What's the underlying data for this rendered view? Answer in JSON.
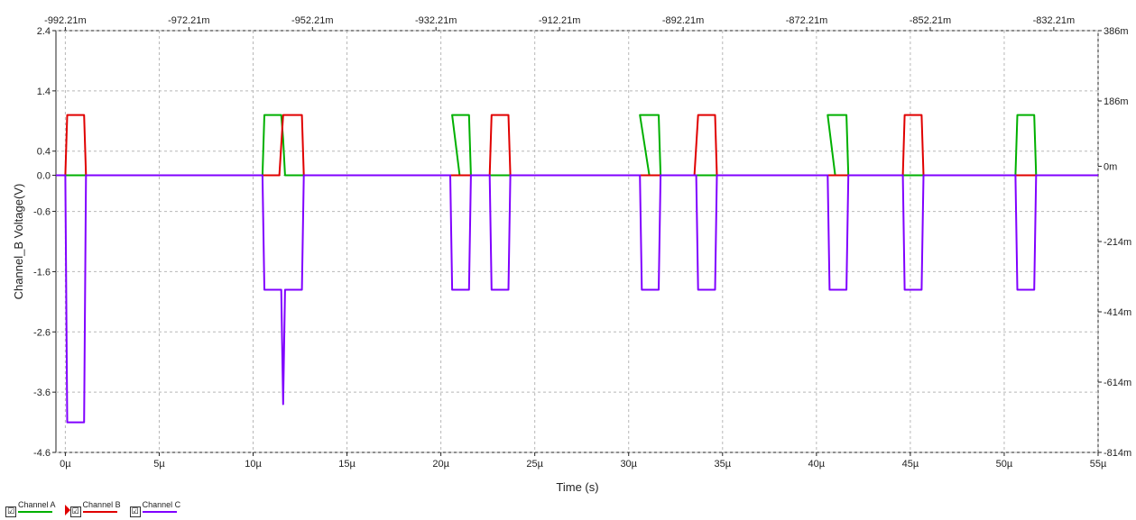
{
  "chart_data": {
    "type": "line",
    "xlabel": "Time (s)",
    "ylabel": "Channel_B Voltage(V)",
    "xlim": [
      -0.5,
      55
    ],
    "ylim": [
      -4.6,
      2.4
    ],
    "y2lim": [
      -814,
      386
    ],
    "x_ticks": [
      "0µ",
      "5µ",
      "10µ",
      "15µ",
      "20µ",
      "25µ",
      "30µ",
      "35µ",
      "40µ",
      "45µ",
      "50µ",
      "55µ"
    ],
    "x_tick_values": [
      0,
      5,
      10,
      15,
      20,
      25,
      30,
      35,
      40,
      45,
      50,
      55
    ],
    "y_ticks": [
      "2.4",
      "1.4",
      "0.4",
      "0.0",
      "-0.6",
      "-1.6",
      "-2.6",
      "-3.6",
      "-4.6"
    ],
    "y_tick_values": [
      2.4,
      1.4,
      0.4,
      0.0,
      -0.6,
      -1.6,
      -2.6,
      -3.6,
      -4.6
    ],
    "y2_ticks": [
      "386m",
      "186m",
      "0m",
      "-214m",
      "-414m",
      "-614m",
      "-814m"
    ],
    "y2_tick_values": [
      386,
      186,
      0,
      -214,
      -414,
      -614,
      -814
    ],
    "x2_ticks": [
      "-992.21m",
      "-972.21m",
      "-952.21m",
      "-932.21m",
      "-912.21m",
      "-892.21m",
      "-872.21m",
      "-852.21m",
      "-832.21m"
    ],
    "x2_tick_values": [
      0,
      6.58,
      13.16,
      19.74,
      26.32,
      32.9,
      39.48,
      46.06,
      52.64
    ],
    "grid": true,
    "legend_position": "bottom-left",
    "series": [
      {
        "name": "Channel A",
        "color": "#00b000",
        "x": [
          -0.5,
          10.5,
          10.6,
          11.5,
          11.6,
          11.7,
          21.0,
          20.6,
          21.5,
          21.6,
          31.1,
          30.6,
          31.6,
          31.7,
          41.0,
          40.6,
          41.6,
          41.7,
          50.6,
          50.7,
          51.6,
          51.7,
          55
        ],
        "y": [
          0,
          0,
          1.0,
          1.0,
          0.6,
          0,
          0,
          1.0,
          1.0,
          0,
          0,
          1.0,
          1.0,
          0,
          0,
          1.0,
          1.0,
          0,
          0,
          1.0,
          1.0,
          0,
          0
        ]
      },
      {
        "name": "Channel B",
        "color": "#e00000",
        "x": [
          -0.5,
          0.0,
          0.1,
          1.0,
          1.1,
          11.4,
          11.6,
          12.6,
          12.7,
          22.6,
          22.7,
          23.6,
          23.7,
          33.5,
          33.7,
          34.6,
          34.7,
          44.6,
          44.7,
          45.6,
          45.7,
          55
        ],
        "y": [
          0,
          0,
          1.0,
          1.0,
          0,
          0,
          1.0,
          1.0,
          0,
          0,
          1.0,
          1.0,
          0,
          0,
          1.0,
          1.0,
          0,
          0,
          1.0,
          1.0,
          0,
          0
        ]
      },
      {
        "name": "Channel C",
        "color": "#8000ff",
        "x": [
          -0.5,
          0.0,
          0.1,
          1.0,
          1.1,
          10.5,
          10.6,
          11.5,
          11.55,
          11.6,
          11.7,
          12.6,
          12.7,
          20.5,
          20.6,
          21.5,
          21.6,
          22.6,
          22.7,
          23.6,
          23.7,
          30.6,
          30.7,
          31.6,
          31.7,
          33.6,
          33.7,
          34.6,
          34.7,
          40.6,
          40.7,
          41.6,
          41.7,
          44.6,
          44.7,
          45.6,
          45.7,
          50.6,
          50.7,
          51.6,
          51.7,
          55
        ],
        "y": [
          0,
          0,
          -4.1,
          -4.1,
          0,
          0,
          -1.9,
          -1.9,
          -2.9,
          -3.8,
          -1.9,
          -1.9,
          0,
          0,
          -1.9,
          -1.9,
          0,
          0,
          -1.9,
          -1.9,
          0,
          0,
          -1.9,
          -1.9,
          0,
          0,
          -1.9,
          -1.9,
          0,
          0,
          -1.9,
          -1.9,
          0,
          0,
          -1.9,
          -1.9,
          0,
          0,
          -1.9,
          -1.9,
          0,
          0
        ]
      }
    ]
  },
  "legend": [
    {
      "label": "Channel A",
      "color": "#00b000",
      "checked": "☑",
      "marker": false
    },
    {
      "label": "Channel B",
      "color": "#e00000",
      "checked": "☑",
      "marker": true
    },
    {
      "label": "Channel C",
      "color": "#8000ff",
      "checked": "☑",
      "marker": false
    }
  ]
}
